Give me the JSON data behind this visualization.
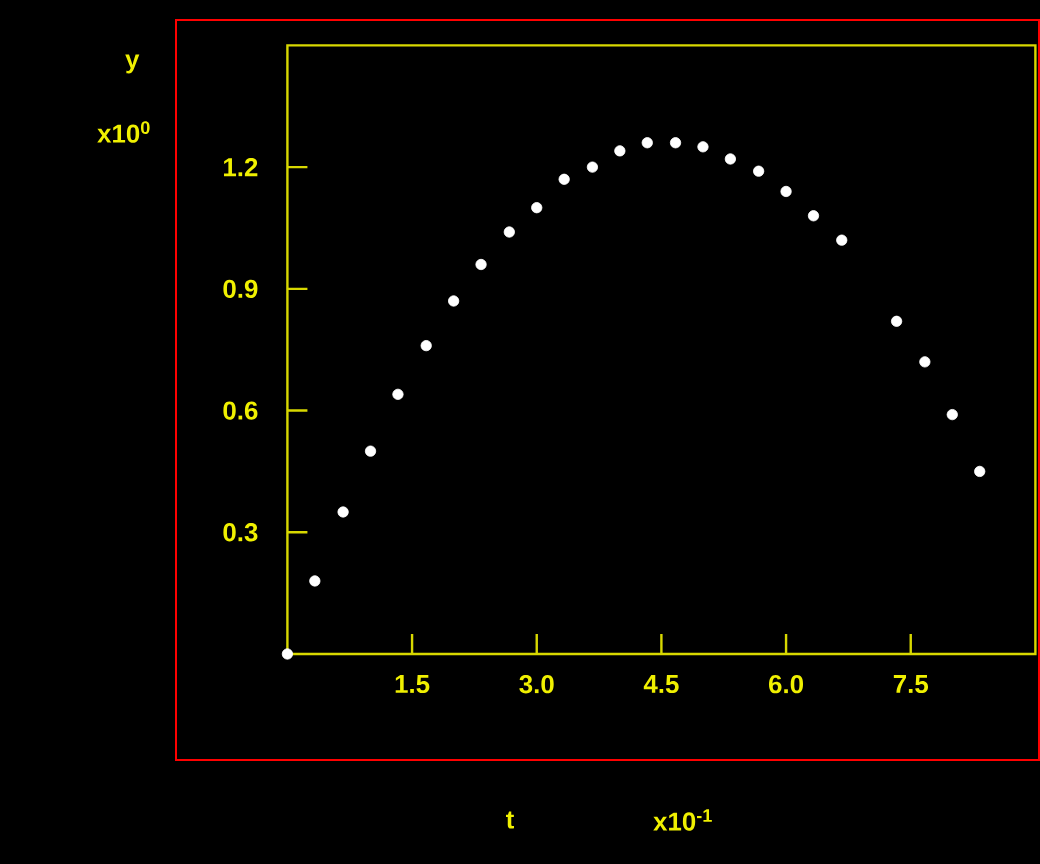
{
  "chart_data": {
    "type": "scatter",
    "xlabel": "t",
    "ylabel": "y",
    "annotations": [
      "x10$^{0}$",
      "x10$^{-1}$"
    ],
    "x": [
      0,
      0.33,
      0.67,
      1,
      1.33,
      1.67,
      2,
      2.33,
      2.67,
      3,
      3.33,
      3.67,
      4,
      4.33,
      4.67,
      5,
      5.33,
      5.67,
      6,
      6.33,
      6.67,
      7.33,
      7.67,
      8,
      8.33
    ],
    "series": [
      {
        "color": "#ffffff",
        "values": [
          0,
          0.18,
          0.35,
          0.5,
          0.64,
          0.76,
          0.87,
          0.96,
          1.04,
          1.1,
          1.17,
          1.2,
          1.24,
          1.26,
          1.26,
          1.25,
          1.22,
          1.19,
          1.14,
          1.08,
          1.02,
          0.82,
          0.72,
          0.59,
          0.45
        ]
      }
    ],
    "marker": "circle",
    "xlim": [
      0,
      9
    ],
    "ylim": [
      0,
      1.5
    ],
    "xticks": [
      1.5,
      {
        "value": 3,
        "label": "3.0"
      },
      4.5,
      {
        "value": 6,
        "label": "6.0"
      },
      7.5
    ],
    "yticks": [
      0.3,
      0.6,
      0.9,
      1.2
    ]
  }
}
